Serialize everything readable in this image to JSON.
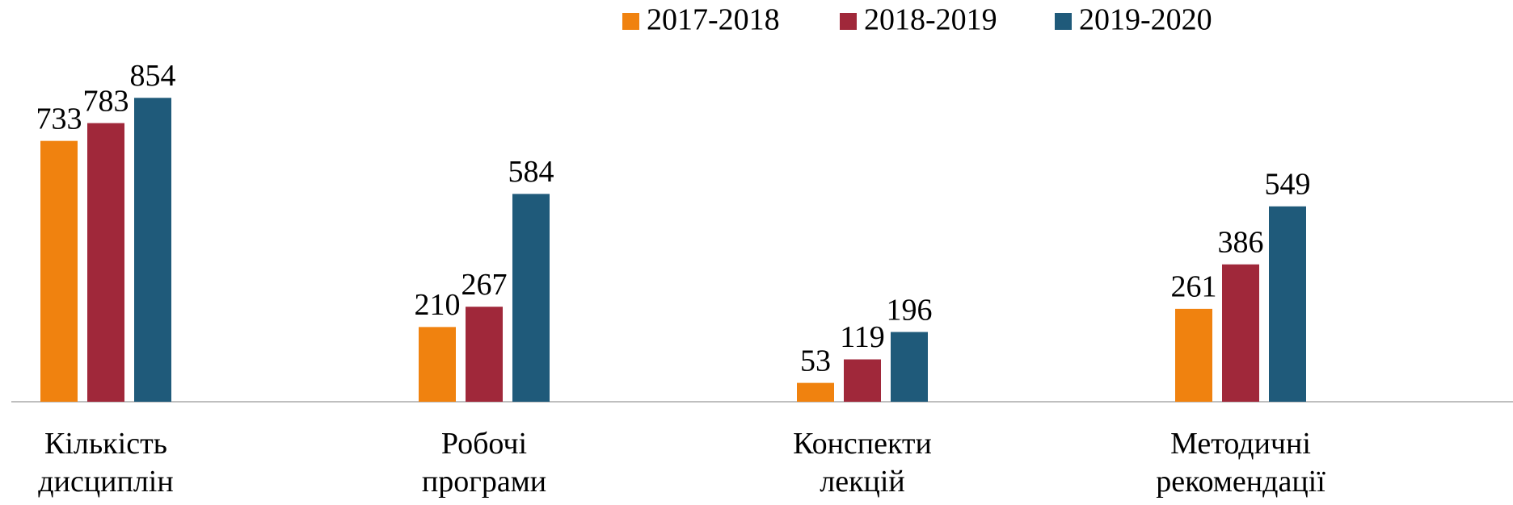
{
  "chart_data": {
    "type": "bar",
    "categories": [
      "Кількість дисциплін",
      "Робочі програми",
      "Конспекти лекцій",
      "Методичні рекомендації"
    ],
    "series": [
      {
        "name": "2017-2018",
        "color": "#f0820f",
        "values": [
          733,
          210,
          53,
          261
        ]
      },
      {
        "name": "2018-2019",
        "color": "#a0283a",
        "values": [
          783,
          267,
          119,
          386
        ]
      },
      {
        "name": "2019-2020",
        "color": "#1f5a7a",
        "values": [
          854,
          584,
          196,
          549
        ]
      }
    ],
    "ylim": [
      0,
      900
    ],
    "legend": "top"
  }
}
